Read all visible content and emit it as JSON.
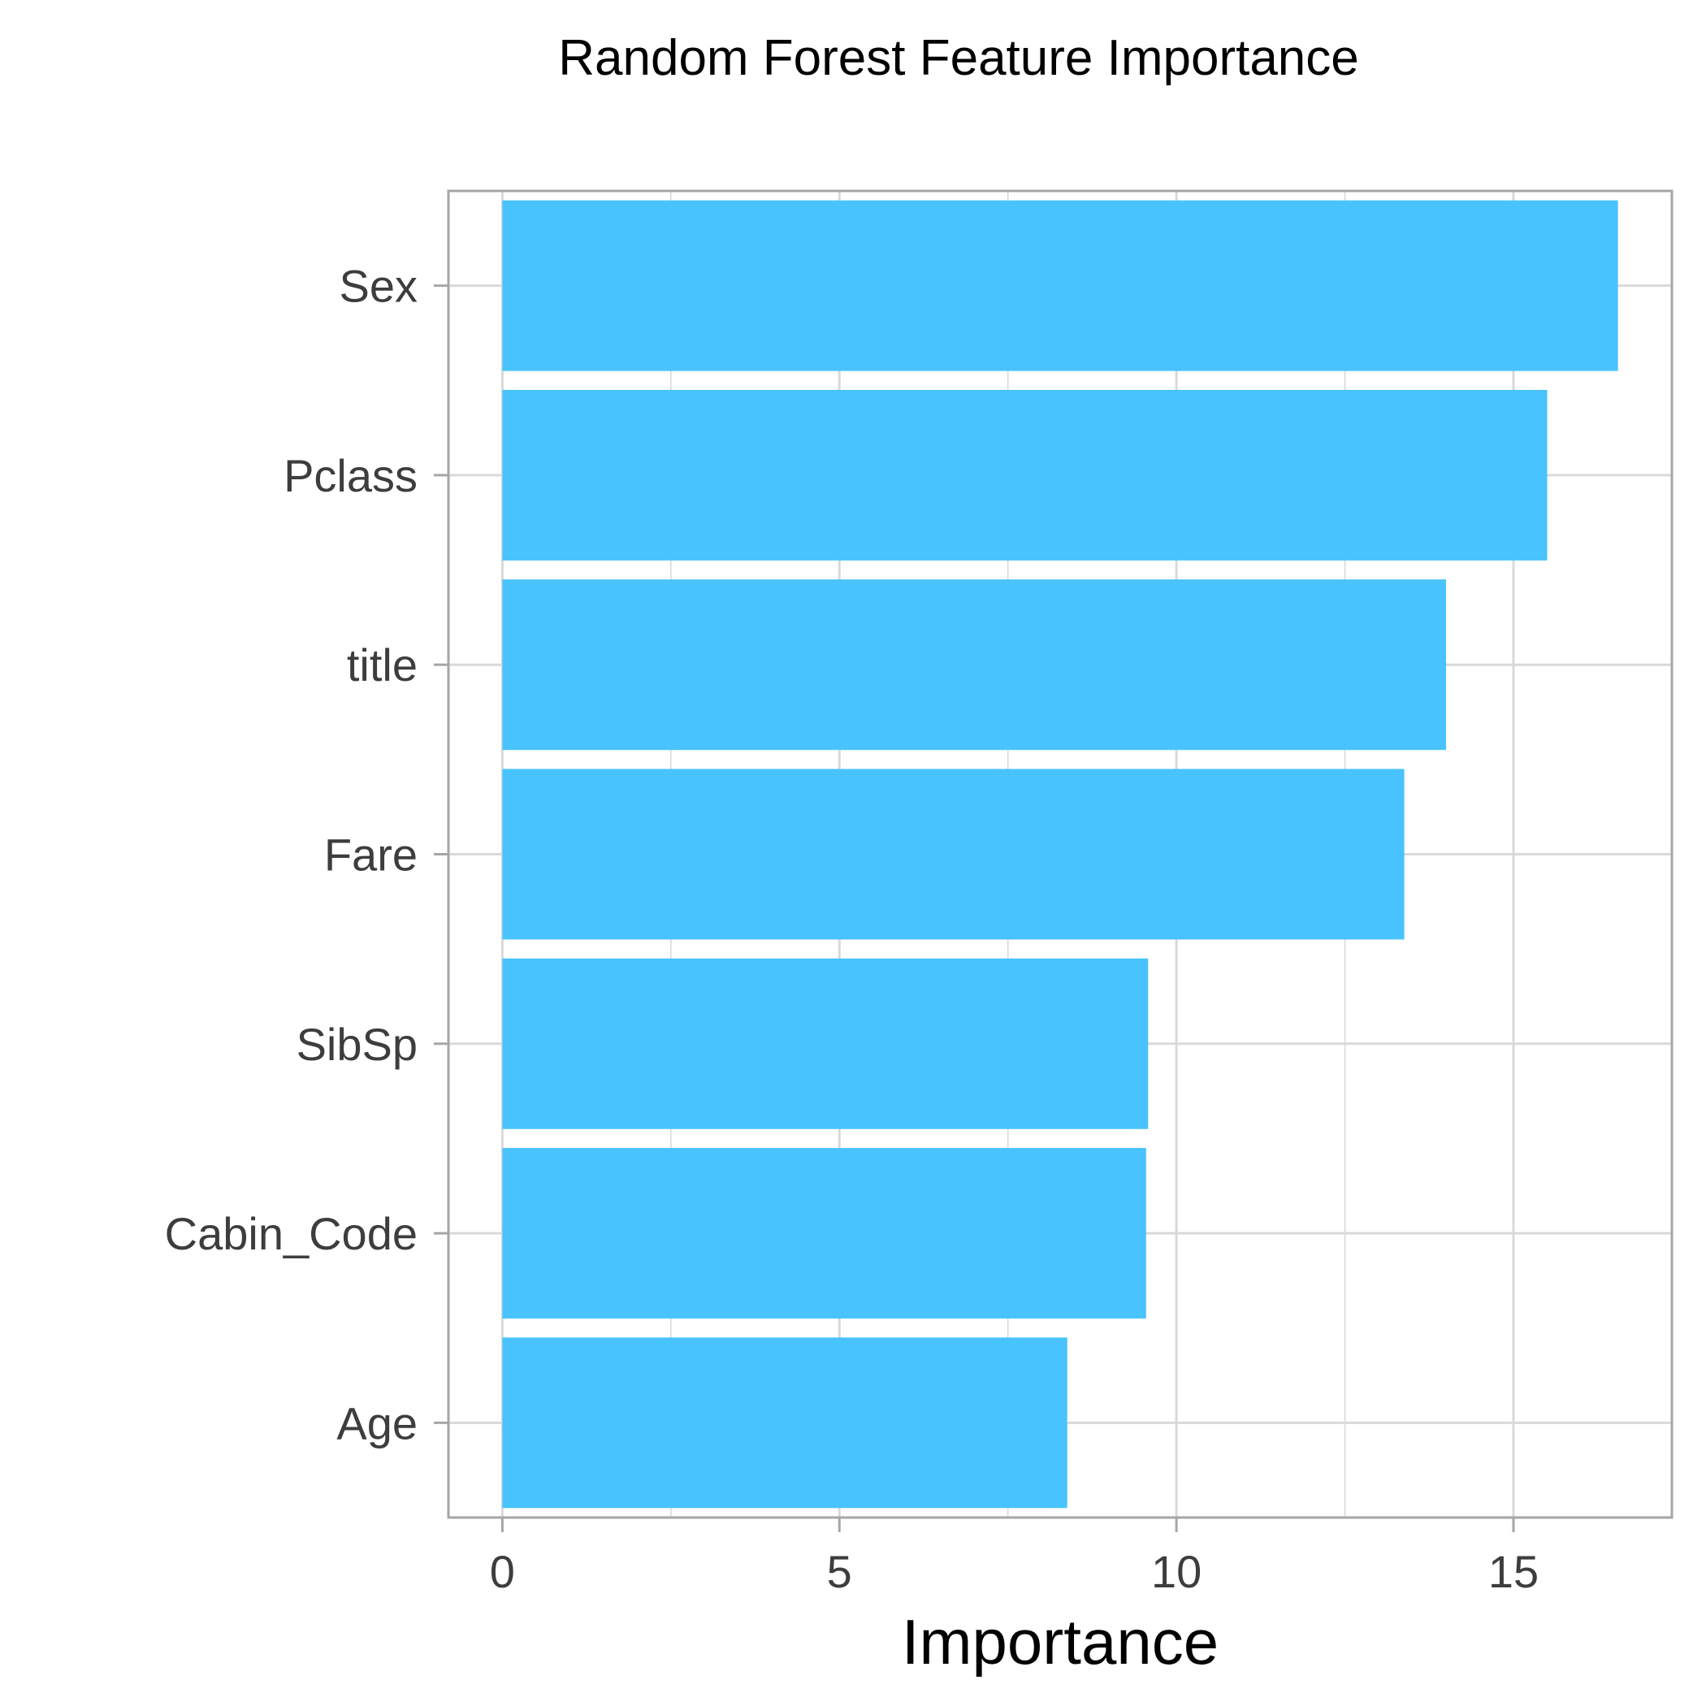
{
  "chart_data": {
    "type": "bar",
    "orientation": "horizontal",
    "title": "Random Forest Feature Importance",
    "xlabel": "Importance",
    "ylabel": "",
    "categories": [
      "Sex",
      "Pclass",
      "title",
      "Fare",
      "SibSp",
      "Cabin_Code",
      "Age"
    ],
    "values": [
      16.55,
      15.5,
      14.0,
      13.38,
      9.58,
      9.55,
      8.38
    ],
    "xlim": [
      -0.8,
      17.35
    ],
    "xticks": [
      0,
      5,
      10,
      15
    ],
    "grid": true,
    "legend": "none",
    "colors": {
      "bar": "#48c3fe",
      "grid": "#d9d9d9",
      "frame": "#a6a6a6",
      "tick_text": "#3d3d3d"
    }
  }
}
